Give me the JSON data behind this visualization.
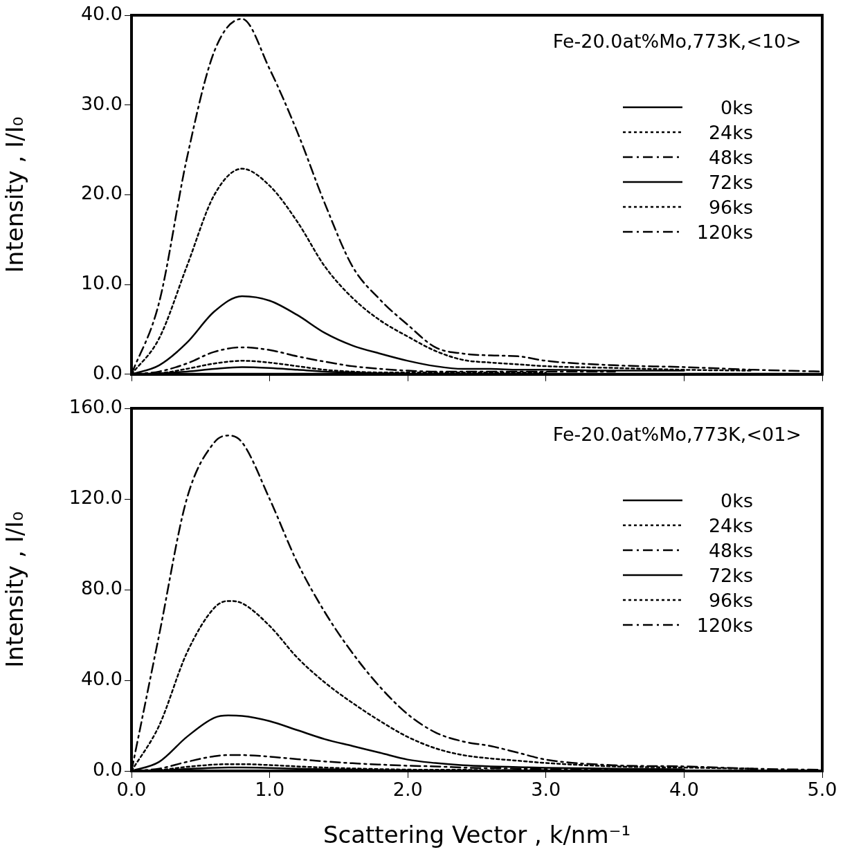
{
  "chart_data": [
    {
      "type": "line",
      "title": "Fe-20.0at%Mo,773K,<10>",
      "ylabel": "Intensity , I/I₀",
      "legend": "top right",
      "grid": false,
      "marker": "none",
      "tick_labels": "y",
      "x": [
        0,
        0.2,
        0.4,
        0.6,
        0.8,
        1.0,
        1.2,
        1.4,
        1.6,
        1.8,
        2.0,
        2.2,
        2.4,
        2.6,
        2.8,
        3.0,
        3.5,
        4.0,
        4.5,
        5.0
      ],
      "xlim": [
        0,
        5
      ],
      "xticks": [
        0,
        1,
        2,
        3,
        4,
        5
      ],
      "ylim": [
        0,
        40
      ],
      "yticks": [
        {
          "value": 0,
          "label": "0.0"
        },
        {
          "value": 10,
          "label": "10.0"
        },
        {
          "value": 20,
          "label": "20.0"
        },
        {
          "value": 30,
          "label": "30.0"
        },
        {
          "value": 40,
          "label": "40.0"
        }
      ],
      "series": [
        {
          "name": "0ks",
          "color": "#000000",
          "line_style": "solid",
          "values": [
            0,
            0.1,
            0.3,
            0.6,
            0.8,
            0.7,
            0.5,
            0.3,
            0.2,
            0.1,
            0.1,
            null,
            null,
            null,
            null,
            null,
            null,
            null,
            null,
            null
          ]
        },
        {
          "name": "24ks",
          "color": "#000000",
          "line_style": "dotted",
          "values": [
            0,
            0.1,
            0.6,
            1.2,
            1.5,
            1.3,
            0.9,
            0.5,
            0.3,
            0.2,
            0.2,
            0.2,
            0.2,
            0.2,
            0.2,
            0.2,
            null,
            null,
            null,
            null
          ]
        },
        {
          "name": "48ks",
          "color": "#000000",
          "line_style": "dashed",
          "values": [
            0,
            0.3,
            1.2,
            2.5,
            3.0,
            2.7,
            2.0,
            1.4,
            0.9,
            0.6,
            0.4,
            0.3,
            0.3,
            0.3,
            0.3,
            0.3,
            0.3,
            null,
            null,
            null
          ]
        },
        {
          "name": "72ks",
          "color": "#000000",
          "line_style": "solid",
          "values": [
            0,
            1.0,
            3.5,
            7.0,
            8.7,
            8.2,
            6.6,
            4.6,
            3.2,
            2.3,
            1.5,
            0.9,
            0.6,
            0.6,
            0.5,
            0.5,
            0.4,
            0.4,
            null,
            null
          ]
        },
        {
          "name": "96ks",
          "color": "#000000",
          "line_style": "dotted",
          "values": [
            0,
            4,
            12,
            20,
            22.9,
            21,
            17,
            12,
            8.5,
            6,
            4.2,
            2.6,
            1.6,
            1.3,
            1.1,
            0.9,
            0.7,
            0.5,
            0.4,
            null
          ]
        },
        {
          "name": "120ks",
          "color": "#000000",
          "line_style": "dashed",
          "values": [
            0,
            8,
            24,
            36,
            39.6,
            34,
            27,
            19,
            12,
            8.3,
            5.5,
            3,
            2.3,
            2.1,
            2.0,
            1.5,
            1.0,
            0.8,
            0.5,
            0.3
          ]
        }
      ]
    },
    {
      "type": "line",
      "title": "Fe-20.0at%Mo,773K,<01>",
      "xlabel": "Scattering Vector , k/nm⁻¹",
      "ylabel": "Intensity , I/I₀",
      "legend": "top right",
      "grid": false,
      "marker": "none",
      "x": [
        0,
        0.2,
        0.4,
        0.6,
        0.7,
        0.8,
        1.0,
        1.2,
        1.4,
        1.6,
        1.8,
        2.0,
        2.2,
        2.4,
        2.6,
        2.8,
        3.0,
        3.5,
        4.0,
        4.5,
        5.0
      ],
      "xlim": [
        0,
        5
      ],
      "xticks": [
        {
          "value": 0,
          "label": "0.0"
        },
        {
          "value": 1,
          "label": "1.0"
        },
        {
          "value": 2,
          "label": "2.0"
        },
        {
          "value": 3,
          "label": "3.0"
        },
        {
          "value": 4,
          "label": "4.0"
        },
        {
          "value": 5,
          "label": "5.0"
        }
      ],
      "ylim": [
        0,
        160
      ],
      "yticks": [
        {
          "value": 0,
          "label": "0.0"
        },
        {
          "value": 40,
          "label": "40.0"
        },
        {
          "value": 80,
          "label": "80.0"
        },
        {
          "value": 120,
          "label": "120.0"
        },
        {
          "value": 160,
          "label": "160.0"
        }
      ],
      "series": [
        {
          "name": "0ks",
          "color": "#000000",
          "line_style": "solid",
          "values": [
            0,
            0.2,
            0.9,
            1.4,
            1.5,
            1.5,
            1.3,
            1.0,
            0.8,
            0.6,
            0.4,
            0.3,
            null,
            null,
            null,
            null,
            null,
            null,
            null,
            null,
            null
          ]
        },
        {
          "name": "24ks",
          "color": "#000000",
          "line_style": "dotted",
          "values": [
            0,
            0.4,
            1.8,
            2.8,
            3.0,
            3.0,
            2.6,
            2.0,
            1.5,
            1.1,
            0.8,
            0.6,
            0.5,
            0.5,
            0.4,
            0.4,
            0.4,
            null,
            null,
            null,
            null
          ]
        },
        {
          "name": "48ks",
          "color": "#000000",
          "line_style": "dashed",
          "values": [
            0,
            1,
            4,
            6.5,
            7,
            7,
            6.3,
            5.2,
            4.2,
            3.4,
            2.8,
            2.3,
            2.0,
            1.5,
            1.2,
            1.0,
            0.8,
            0.6,
            null,
            null,
            null
          ]
        },
        {
          "name": "72ks",
          "color": "#000000",
          "line_style": "solid",
          "values": [
            0,
            4,
            15,
            23.5,
            24.5,
            24.3,
            22,
            18,
            14,
            11,
            8,
            5,
            3.5,
            2.5,
            2,
            1.7,
            1.4,
            1,
            0.8,
            null,
            null
          ]
        },
        {
          "name": "96ks",
          "color": "#000000",
          "line_style": "dotted",
          "values": [
            0,
            20,
            52,
            72,
            75,
            74,
            64,
            50,
            39,
            30,
            22,
            15,
            10,
            7,
            5.5,
            4.5,
            3.5,
            2,
            1.5,
            1,
            null
          ]
        },
        {
          "name": "120ks",
          "color": "#000000",
          "line_style": "dashed",
          "values": [
            0,
            60,
            120,
            145,
            148,
            145,
            120,
            92,
            70,
            52,
            37,
            25,
            17,
            13,
            11,
            8,
            5,
            2.5,
            2,
            1,
            0.5
          ]
        }
      ]
    }
  ]
}
